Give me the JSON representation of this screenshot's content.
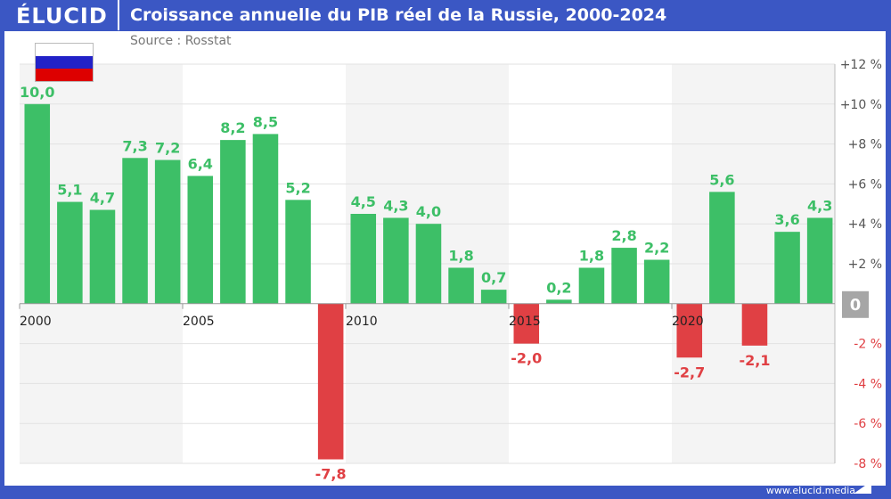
{
  "header": {
    "logo": "ÉLUCID",
    "title": "Croissance annuelle du PIB réel de la Russie, 2000-2024"
  },
  "source": "Source : Rosstat",
  "footer": {
    "url": "www.elucid.media"
  },
  "colors": {
    "frame": "#3b57c4",
    "positive": "#3dbf67",
    "negative": "#e04044",
    "band": "#f4f4f4",
    "zero_box": "#a6a6a6"
  },
  "flag": {
    "icon": "russia-flag-icon",
    "stripes": [
      "#ffffff",
      "#2222c8",
      "#dd0000"
    ]
  },
  "chart_data": {
    "type": "bar",
    "title": "Croissance annuelle du PIB réel de la Russie, 2000-2024",
    "categories": [
      2000,
      2001,
      2002,
      2003,
      2004,
      2005,
      2006,
      2007,
      2008,
      2009,
      2010,
      2011,
      2012,
      2013,
      2014,
      2015,
      2016,
      2017,
      2018,
      2019,
      2020,
      2021,
      2022,
      2023,
      2024
    ],
    "values": [
      10.0,
      5.1,
      4.7,
      7.3,
      7.2,
      6.4,
      8.2,
      8.5,
      5.2,
      -7.8,
      4.5,
      4.3,
      4.0,
      1.8,
      0.7,
      -2.0,
      0.2,
      1.8,
      2.8,
      2.2,
      -2.7,
      5.6,
      -2.1,
      3.6,
      4.3
    ],
    "data_labels": [
      "10,0",
      "5,1",
      "4,7",
      "7,3",
      "7,2",
      "6,4",
      "8,2",
      "8,5",
      "5,2",
      "-7,8",
      "4,5",
      "4,3",
      "4,0",
      "1,8",
      "0,7",
      "-2,0",
      "0,2",
      "1,8",
      "2,8",
      "2,2",
      "-2,7",
      "5,6",
      "-2,1",
      "3,6",
      "4,3"
    ],
    "x_tick_labels": [
      "2000",
      "2005",
      "2010",
      "2015",
      "2020"
    ],
    "y_ticks": [
      12,
      10,
      8,
      6,
      4,
      2,
      0,
      -2,
      -4,
      -6,
      -8
    ],
    "y_tick_labels": [
      "+12 %",
      "+10 %",
      "+8 %",
      "+6 %",
      "+4 %",
      "+2 %",
      "0",
      "-2 %",
      "-4 %",
      "-6 %",
      "-8 %"
    ],
    "ylim": [
      -8,
      12
    ],
    "y_axis_side": "right",
    "grid": true
  }
}
